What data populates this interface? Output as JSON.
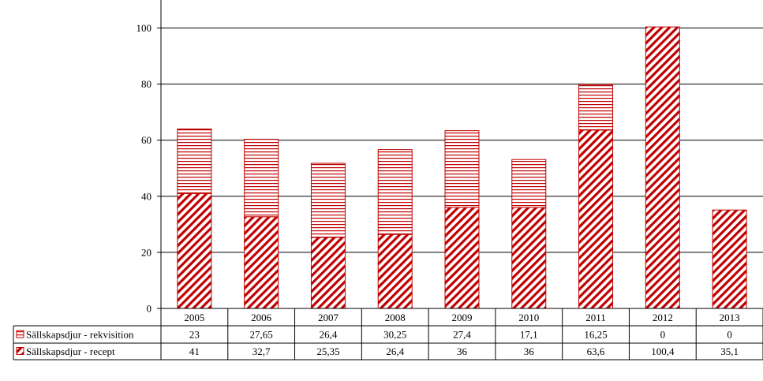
{
  "chart_data": {
    "type": "bar",
    "stacked": true,
    "title": "",
    "xlabel": "",
    "ylabel": "",
    "ylim": [
      0,
      110
    ],
    "yticks": [
      0,
      20,
      40,
      60,
      80,
      100
    ],
    "grid": true,
    "legend": "data-table-left",
    "categories": [
      "2005",
      "2006",
      "2007",
      "2008",
      "2009",
      "2010",
      "2011",
      "2012",
      "2013"
    ],
    "series": [
      {
        "name": "Sällskapsdjur - recept",
        "values": [
          41,
          32.7,
          25.35,
          26.4,
          36,
          36,
          63.6,
          100.4,
          35.1
        ],
        "labels": [
          "41",
          "32,7",
          "25,35",
          "26,4",
          "36",
          "36",
          "63,6",
          "100,4",
          "35,1"
        ],
        "color": "#c00000",
        "pattern": "diagonal-stripes"
      },
      {
        "name": "Sällskapsdjur - rekvisition",
        "values": [
          23,
          27.65,
          26.4,
          30.25,
          27.4,
          17.1,
          16.25,
          0,
          0
        ],
        "labels": [
          "23",
          "27,65",
          "26,4",
          "30,25",
          "27,4",
          "17,1",
          "16,25",
          "0",
          "0"
        ],
        "color": "#c00000",
        "pattern": "horizontal-lines"
      }
    ]
  }
}
